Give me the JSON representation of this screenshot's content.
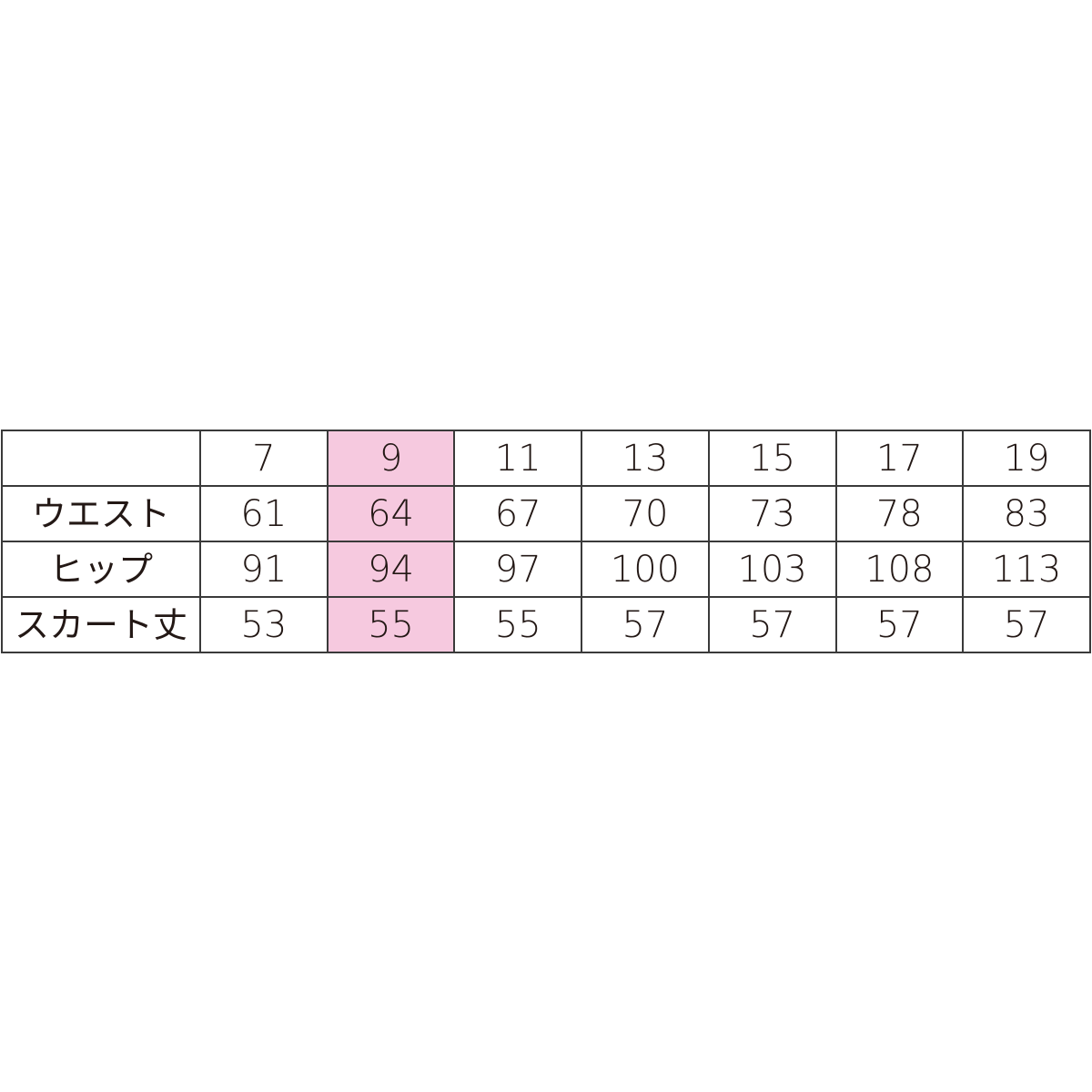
{
  "table": {
    "header": [
      "",
      "7",
      "9",
      "11",
      "13",
      "15",
      "17",
      "19"
    ],
    "highlight_color": "#f6c9df",
    "highlighted_size": "9",
    "rows": [
      {
        "label": "ウエスト",
        "values": [
          "61",
          "64",
          "67",
          "70",
          "73",
          "78",
          "83"
        ]
      },
      {
        "label": "ヒップ",
        "values": [
          "91",
          "94",
          "97",
          "100",
          "103",
          "108",
          "113"
        ]
      },
      {
        "label": "スカート丈",
        "values": [
          "53",
          "55",
          "55",
          "57",
          "57",
          "57",
          "57"
        ]
      }
    ]
  }
}
